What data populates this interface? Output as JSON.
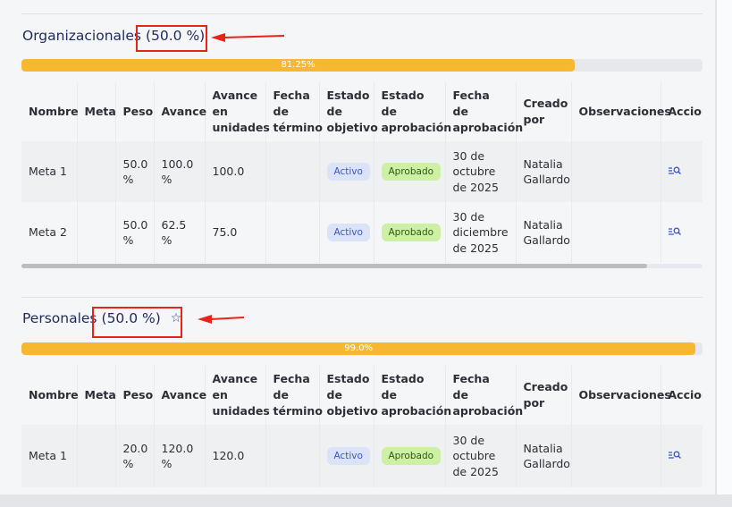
{
  "columns": [
    "Nombre",
    "Meta",
    "Peso",
    "Avance",
    "Avance en unidades",
    "Fecha de término",
    "Estado de objetivo",
    "Estado de aprobación",
    "Fecha de aprobación",
    "Creado por",
    "Observaciones",
    "Acciones"
  ],
  "sections": [
    {
      "title": "Organizacionales",
      "percent": "(50.0 %)",
      "progress": 81.25,
      "progress_label": "81.25%",
      "rows": [
        {
          "nombre": "Meta 1",
          "meta": "",
          "peso": "50.0 %",
          "avance": "100.0 %",
          "unidades": "100.0",
          "fecha_termino": "",
          "estado": "Activo",
          "aprobacion": "Aprobado",
          "fecha_aprobacion": "30 de octubre de 2025",
          "creado_por": "Natalia Gallardo",
          "observaciones": ""
        },
        {
          "nombre": "Meta 2",
          "meta": "",
          "peso": "50.0 %",
          "avance": "62.5 %",
          "unidades": "75.0",
          "fecha_termino": "",
          "estado": "Activo",
          "aprobacion": "Aprobado",
          "fecha_aprobacion": "30 de diciembre de 2025",
          "creado_por": "Natalia Gallardo",
          "observaciones": ""
        }
      ]
    },
    {
      "title": "Personales",
      "percent": "(50.0 %)",
      "progress": 99.0,
      "progress_label": "99.0%",
      "starred": true,
      "rows": [
        {
          "nombre": "Meta 1",
          "meta": "",
          "peso": "20.0 %",
          "avance": "120.0 %",
          "unidades": "120.0",
          "fecha_termino": "",
          "estado": "Activo",
          "aprobacion": "Aprobado",
          "fecha_aprobacion": "30 de octubre de 2025",
          "creado_por": "Natalia Gallardo",
          "observaciones": ""
        }
      ]
    }
  ],
  "colors": {
    "accent": "#f8b730",
    "title": "#1f2a5c",
    "annotation": "#e8231a",
    "active_badge": "#dbe3f8",
    "approved_badge": "#cdf0a4"
  }
}
